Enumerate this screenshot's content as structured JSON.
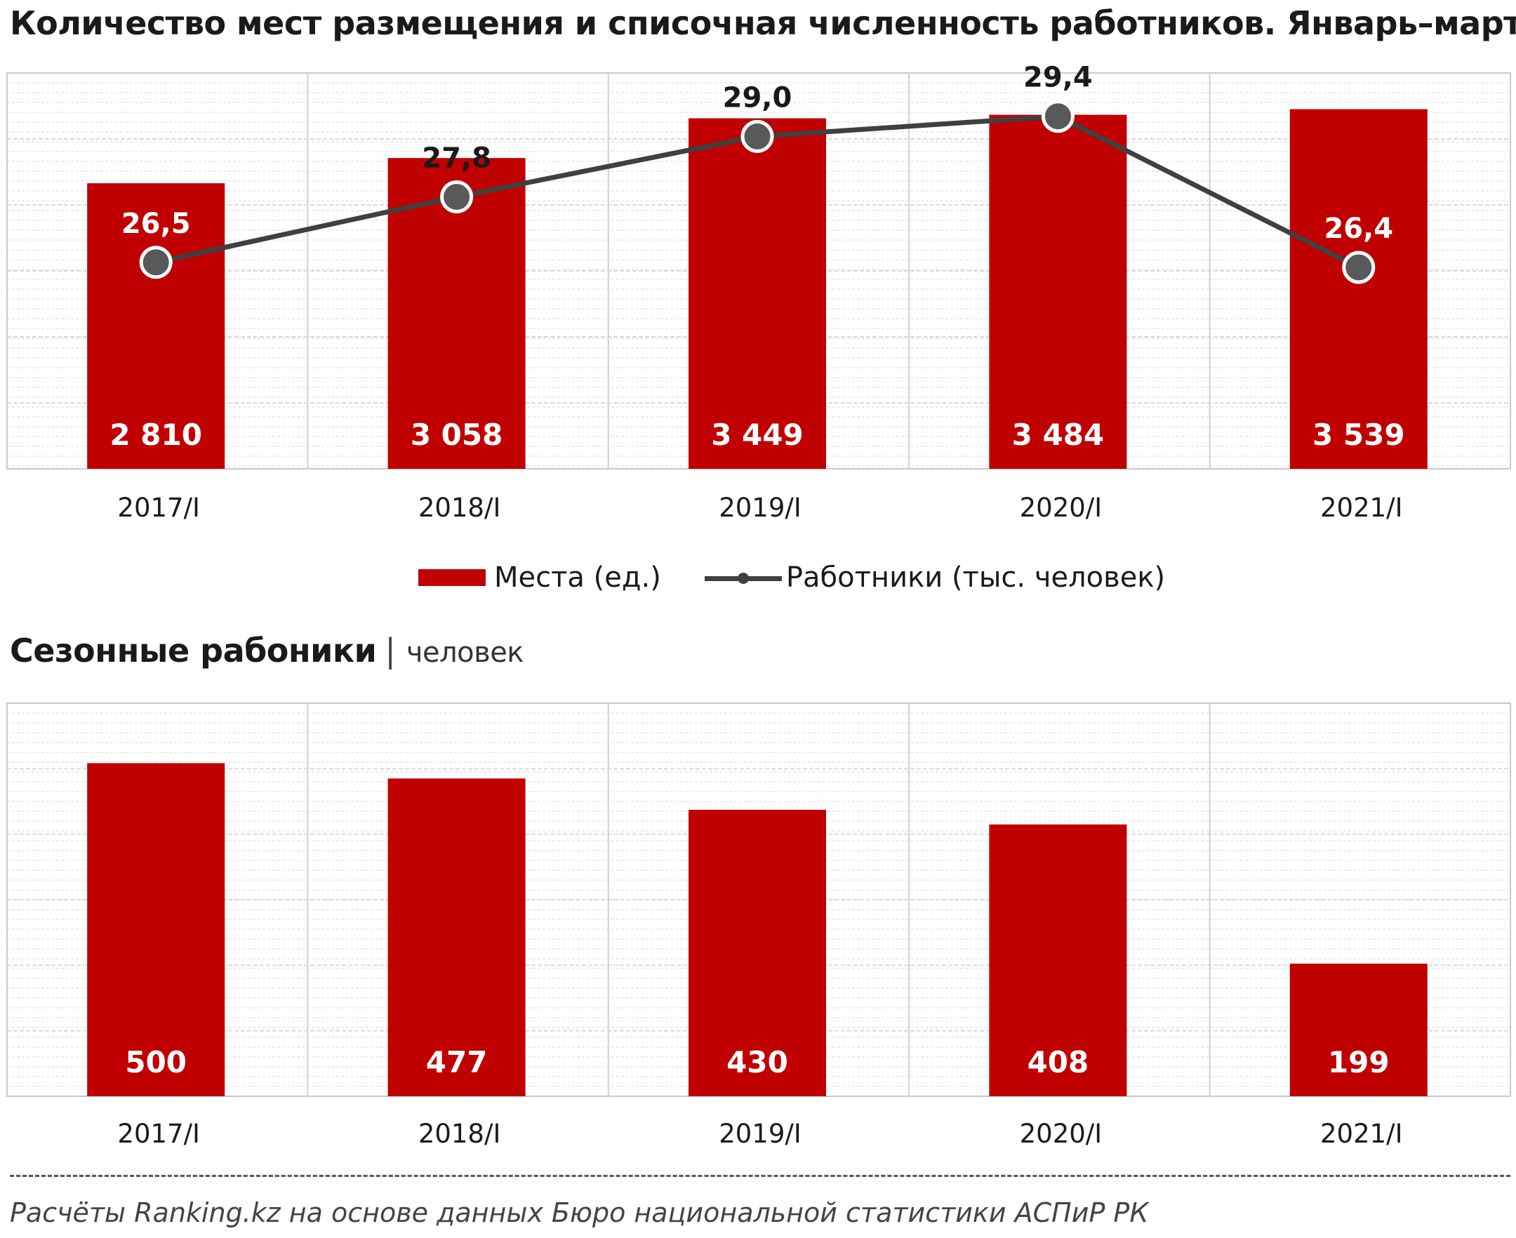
{
  "title": "Количество мест размещения и списочная численность работников. Январь–март",
  "title2": {
    "main": "Сезонные рабоники",
    "separator": "|",
    "unit": "человек"
  },
  "legend": {
    "bars": "Места (ед.)",
    "line": "Работники (тыс. человек)"
  },
  "source": "Расчёты Ranking.kz на основе данных  Бюро национальной  статистики АСПиР РК",
  "colors": {
    "bar": "#c00000",
    "line": "#404040",
    "grid": "#d9d9d9"
  },
  "chart_data": [
    {
      "type": "bar",
      "title": "Количество мест размещения и списочная численность работников. Январь–март",
      "categories": [
        "2017/I",
        "2018/I",
        "2019/I",
        "2020/I",
        "2021/I"
      ],
      "series": [
        {
          "name": "Места (ед.)",
          "type": "bar",
          "values": [
            2810,
            3058,
            3449,
            3484,
            3539
          ],
          "labels": [
            "2 810",
            "3 058",
            "3 449",
            "3 484",
            "3 539"
          ]
        },
        {
          "name": "Работники (тыс. человек)",
          "type": "line",
          "values": [
            26.5,
            27.8,
            29.0,
            29.4,
            26.4
          ],
          "labels": [
            "26,5",
            "27,8",
            "29,0",
            "29,4",
            "26,4"
          ]
        }
      ],
      "legend": "bottom-center",
      "grid": true
    },
    {
      "type": "bar",
      "title": "Сезонные рабоники",
      "ylabel": "человек",
      "categories": [
        "2017/I",
        "2018/I",
        "2019/I",
        "2020/I",
        "2021/I"
      ],
      "series": [
        {
          "values": [
            500,
            477,
            430,
            408,
            199
          ],
          "labels": [
            "500",
            "477",
            "430",
            "408",
            "199"
          ]
        }
      ],
      "grid": true
    }
  ]
}
